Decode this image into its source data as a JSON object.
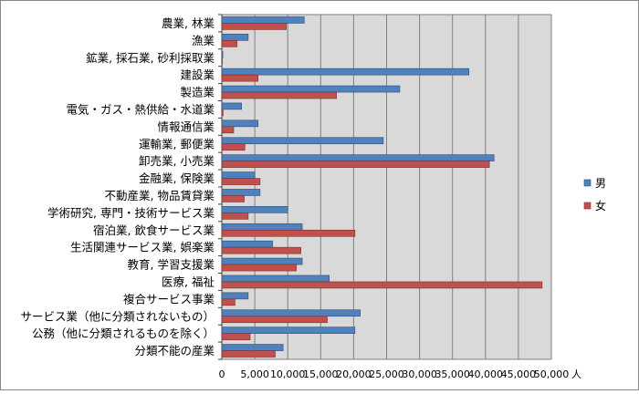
{
  "chart_data": {
    "type": "bar",
    "orientation": "horizontal",
    "categories": [
      "農業, 林業",
      "漁業",
      "鉱業, 採石業, 砂利採取業",
      "建設業",
      "製造業",
      "電気・ガス・熱供給・水道業",
      "情報通信業",
      "運輸業, 郵便業",
      "卸売業, 小売業",
      "金融業, 保険業",
      "不動産業, 物品賃貸業",
      "学術研究, 専門・技術サービス業",
      "宿泊業, 飲食サービス業",
      "生活関連サービス業, 娯楽業",
      "教育, 学習支援業",
      "医療, 福祉",
      "複合サービス事業",
      "サービス業（他に分類されないもの）",
      "公務（他に分類されるものを除く）",
      "分類不能の産業"
    ],
    "series": [
      {
        "name": "男",
        "color": "#4f81bd",
        "values": [
          12500,
          4000,
          150,
          37500,
          27000,
          3000,
          5500,
          24500,
          41300,
          5000,
          5800,
          10000,
          12200,
          7700,
          12200,
          16300,
          4000,
          21000,
          20200,
          9300
        ]
      },
      {
        "name": "女",
        "color": "#c0504d",
        "values": [
          9800,
          2300,
          80,
          5500,
          17400,
          200,
          1800,
          3500,
          40600,
          5800,
          3400,
          4000,
          20200,
          12000,
          11300,
          48600,
          2000,
          16000,
          4300,
          8100
        ]
      }
    ],
    "x_ticks": [
      "0",
      "5,000",
      "10,000",
      "15,000",
      "20,000",
      "25,000",
      "30,000",
      "35,000",
      "40,000",
      "45,000",
      "50,000"
    ],
    "xlim": [
      0,
      50000
    ],
    "x_unit": "人",
    "legend_position": "right",
    "grid": true
  }
}
